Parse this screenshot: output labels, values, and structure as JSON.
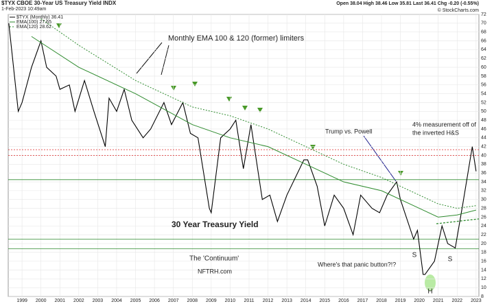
{
  "chart_data": {
    "type": "line",
    "title": "$TYX CBOE 30-Year US Treasury Yield INDX",
    "subtitle": "1-Feb-2023 10:49am",
    "quote": "Open 38.04  High 38.46  Low 35.81  Last 36.41  Chg -0.20 (-0.55%)",
    "copyright": "© StockCharts.com",
    "grid": true,
    "xlim": [
      1998.27,
      2023.15
    ],
    "xticks": [
      1999,
      2000,
      2001,
      2002,
      2003,
      2004,
      2005,
      2006,
      2007,
      2008,
      2009,
      2010,
      2011,
      2012,
      2013,
      2014,
      2015,
      2016,
      2017,
      2018,
      2019,
      2020,
      2021,
      2022,
      2023
    ],
    "ylim": [
      8,
      72
    ],
    "yticks": [
      8,
      10,
      12,
      14,
      16,
      18,
      20,
      22,
      24,
      26,
      28,
      30,
      32,
      34,
      36,
      38,
      40,
      42,
      44,
      46,
      48,
      50,
      52,
      54,
      56,
      58,
      60,
      62,
      64,
      66,
      68,
      70,
      72
    ],
    "series": [
      {
        "name": "$TYX (Monthly) 36.41",
        "color": "#000000",
        "style": "solid",
        "x": [
          1998.3,
          1998.8,
          1999.0,
          1999.5,
          2000.0,
          2000.3,
          2000.8,
          2001.0,
          2001.5,
          2001.8,
          2002.3,
          2002.8,
          2003.4,
          2003.6,
          2004.0,
          2004.4,
          2004.8,
          2005.4,
          2005.8,
          2006.5,
          2006.9,
          2007.5,
          2007.9,
          2008.3,
          2008.9,
          2009.0,
          2009.5,
          2010.0,
          2010.3,
          2010.7,
          2011.1,
          2011.7,
          2012.1,
          2012.5,
          2013.0,
          2013.9,
          2014.1,
          2014.6,
          2015.0,
          2015.5,
          2016.0,
          2016.5,
          2016.9,
          2017.5,
          2017.9,
          2018.3,
          2018.8,
          2019.0,
          2019.7,
          2019.9,
          2020.2,
          2020.3,
          2020.8,
          2021.2,
          2021.5,
          2021.9,
          2022.3,
          2022.8,
          2023.0
        ],
        "values": [
          70,
          50,
          52,
          60,
          66,
          60,
          58,
          55,
          56,
          50,
          57,
          50,
          42,
          53,
          50,
          55,
          48,
          44,
          46,
          52,
          47,
          52,
          45,
          44,
          28,
          27,
          44,
          46,
          48,
          37,
          47,
          30,
          31,
          25,
          31,
          39,
          39,
          33,
          24,
          31,
          28,
          22,
          31,
          28,
          27,
          31,
          34,
          30,
          21,
          23,
          13,
          13,
          16,
          24,
          20,
          19,
          29,
          42,
          36.4
        ]
      },
      {
        "name": "EMA(100) 27.65",
        "color": "#2e8b2e",
        "style": "solid",
        "x": [
          1999.5,
          2002,
          2005,
          2008,
          2010,
          2012,
          2014,
          2016,
          2018,
          2020,
          2021,
          2022,
          2023
        ],
        "values": [
          67,
          60,
          54,
          47,
          44,
          42,
          38,
          34,
          32,
          28,
          26,
          26.5,
          27.6
        ]
      },
      {
        "name": "EMA(120) 28.62",
        "color": "#2e8b2e",
        "style": "dotted",
        "x": [
          2000,
          2002,
          2005,
          2008,
          2010,
          2012,
          2014,
          2016,
          2018,
          2020,
          2021,
          2022,
          2023
        ],
        "values": [
          71,
          65,
          57,
          51,
          49,
          46,
          42,
          38,
          35,
          31,
          29,
          28,
          28.6
        ]
      }
    ],
    "hlines": [
      {
        "value": 41.3,
        "color": "#d22",
        "style": "dotted"
      },
      {
        "value": 40,
        "color": "#d22",
        "style": "dotted"
      },
      {
        "value": 34.5,
        "color": "#2e8b2e",
        "style": "solid"
      },
      {
        "value": 21,
        "color": "#2e8b2e",
        "style": "solid"
      },
      {
        "value": 18.8,
        "color": "#2e8b2e",
        "style": "solid"
      }
    ],
    "trendline": {
      "x": [
        2020.9,
        2023.15
      ],
      "values": [
        24.5,
        25.6
      ],
      "color": "#2e8b2e"
    },
    "annotations": [
      "Monthly EMA 100 & 120 (former) limiters",
      "30 Year Treasury Yield",
      "The 'Continuum'",
      "NFTRH.com",
      "Trump vs. Powell",
      "4% measurement off of",
      "the inverted H&S",
      "Where's that panic button?!?",
      "S",
      "H",
      "S"
    ]
  }
}
